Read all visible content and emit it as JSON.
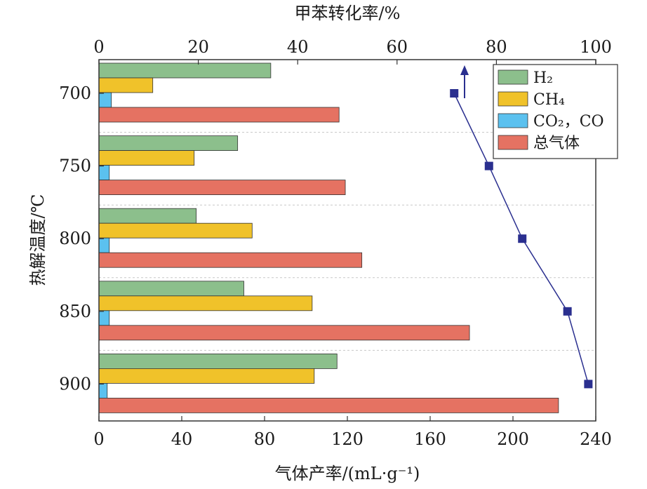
{
  "chart_data": {
    "type": "bar",
    "orientation": "horizontal",
    "title": "",
    "categories": [
      "700",
      "750",
      "800",
      "850",
      "900"
    ],
    "ylabel": "热解温度/℃",
    "xlabel": "气体产率/(mL·g⁻¹)",
    "x_ticks": [
      "0",
      "40",
      "80",
      "120",
      "160",
      "200",
      "240"
    ],
    "xlim": [
      0,
      240
    ],
    "series": [
      {
        "name": "H₂",
        "color": "#8cbf8c",
        "values": [
          83,
          67,
          47,
          70,
          115
        ]
      },
      {
        "name": "CH₄",
        "color": "#f0c22a",
        "values": [
          26,
          46,
          74,
          103,
          104
        ]
      },
      {
        "name": "CO₂，CO",
        "color": "#5bc1ef",
        "values": [
          6,
          5,
          5,
          5,
          4
        ]
      },
      {
        "name": "总气体",
        "color": "#e57262",
        "values": [
          116,
          119,
          127,
          179,
          222
        ]
      }
    ],
    "secondary": {
      "type": "line",
      "xlabel": "甲苯转化率/%",
      "x_ticks": [
        "0",
        "20",
        "40",
        "60",
        "80",
        "100"
      ],
      "xlim": [
        0,
        100
      ],
      "color": "#2a2f8f",
      "values": [
        71.5,
        78.5,
        85.2,
        94.3,
        98.5
      ]
    },
    "legend_position": "top-right",
    "grid": "horizontal-dashed"
  }
}
